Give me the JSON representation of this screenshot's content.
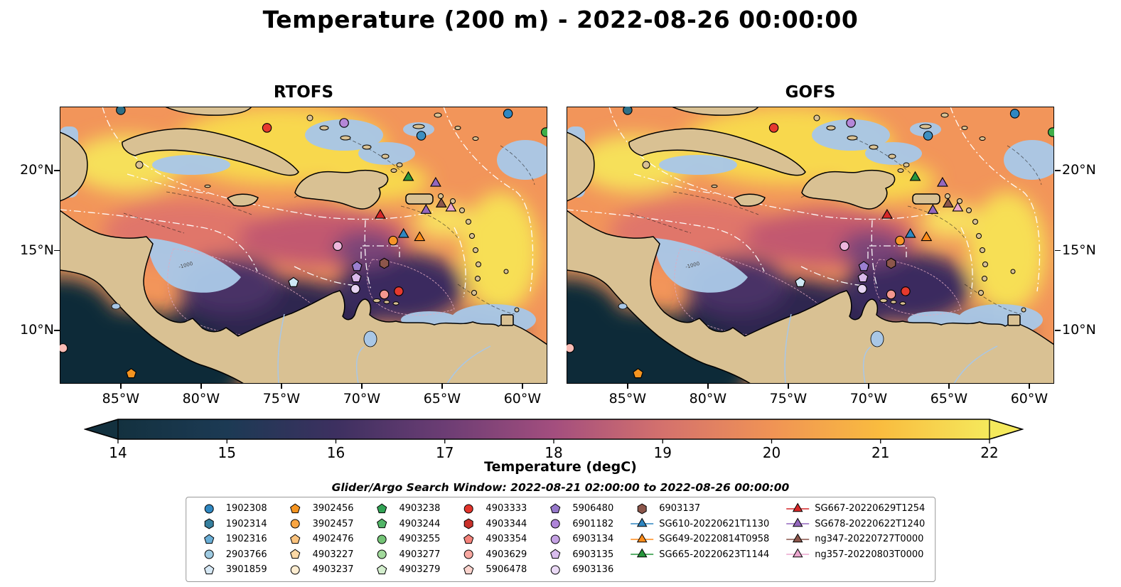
{
  "title": "Temperature (200 m) - 2022-08-26 00:00:00",
  "panels": [
    {
      "title": "RTOFS"
    },
    {
      "title": "GOFS"
    }
  ],
  "search_window": "Glider/Argo Search Window: 2022-08-21 02:00:00 to 2022-08-26 00:00:00",
  "chart_data": {
    "type": "heatmap",
    "description": "Two geographic ocean-model temperature fields at 200 m depth over the Caribbean Sea, with Argo float and glider positions overlaid",
    "panels": [
      "RTOFS",
      "GOFS"
    ],
    "extent": {
      "lon": [
        -88.8,
        -58.45
      ],
      "lat": [
        6.67,
        24.0
      ]
    },
    "lon_ticks": [
      -85,
      -80,
      -75,
      -70,
      -65,
      -60
    ],
    "lat_ticks": [
      20,
      15,
      10
    ],
    "colorbar": {
      "label": "Temperature (degC)",
      "ticks": [
        14,
        15,
        16,
        17,
        18,
        19,
        20,
        21,
        22
      ],
      "range": [
        14,
        22
      ],
      "extended_arrows": true,
      "colors": [
        "#13313f",
        "#1c3a54",
        "#3d3060",
        "#6c3d74",
        "#a34e7e",
        "#d4716d",
        "#f09355",
        "#f9bc3f",
        "#f5e95c"
      ]
    },
    "markers": [
      {
        "lon": -60.9,
        "lat": 23.56,
        "shape": "circle",
        "color": "#2f87c1"
      },
      {
        "lon": -85.0,
        "lat": 23.78,
        "shape": "circle",
        "color": "#2e6f86"
      },
      {
        "lon": -75.9,
        "lat": 22.67,
        "shape": "circle",
        "color": "#e63a2e"
      },
      {
        "lon": -71.1,
        "lat": 22.98,
        "shape": "circle",
        "color": "#b487d8"
      },
      {
        "lon": -66.3,
        "lat": 22.18,
        "shape": "circle",
        "color": "#3d8fc0"
      },
      {
        "lon": -58.55,
        "lat": 22.4,
        "shape": "circle",
        "color": "#3fae49"
      },
      {
        "lon": -67.1,
        "lat": 19.56,
        "shape": "triangle",
        "color": "#27963c"
      },
      {
        "lon": -65.4,
        "lat": 19.2,
        "shape": "triangle",
        "color": "#9467bd"
      },
      {
        "lon": -65.05,
        "lat": 17.9,
        "shape": "triangle",
        "color": "#8c564b"
      },
      {
        "lon": -64.45,
        "lat": 17.65,
        "shape": "triangle",
        "color": "#eba6ce"
      },
      {
        "lon": -66.0,
        "lat": 17.5,
        "shape": "triangle",
        "color": "#9467bd"
      },
      {
        "lon": -68.85,
        "lat": 17.2,
        "shape": "triangle",
        "color": "#d62728"
      },
      {
        "lon": -67.4,
        "lat": 16.0,
        "shape": "triangle",
        "color": "#2e86c1"
      },
      {
        "lon": -66.4,
        "lat": 15.8,
        "shape": "triangle",
        "color": "#ff8c1a"
      },
      {
        "lon": -68.05,
        "lat": 15.62,
        "shape": "circle",
        "color": "#f79428"
      },
      {
        "lon": -71.5,
        "lat": 15.28,
        "shape": "circle",
        "color": "#eeb8dd"
      },
      {
        "lon": -68.6,
        "lat": 14.2,
        "shape": "hexagon",
        "color": "#8c564b"
      },
      {
        "lon": -70.3,
        "lat": 14.0,
        "shape": "pentagon",
        "color": "#9b7fd0"
      },
      {
        "lon": -70.35,
        "lat": 13.3,
        "shape": "pentagon",
        "color": "#d9b8ea"
      },
      {
        "lon": -74.25,
        "lat": 13.0,
        "shape": "pentagon",
        "color": "#cfe8f5"
      },
      {
        "lon": -70.4,
        "lat": 12.6,
        "shape": "circle",
        "color": "#e6d4f2"
      },
      {
        "lon": -68.6,
        "lat": 12.25,
        "shape": "circle",
        "color": "#f4978f"
      },
      {
        "lon": -67.7,
        "lat": 12.45,
        "shape": "circle",
        "color": "#e63a2e"
      },
      {
        "lon": -88.6,
        "lat": 8.9,
        "shape": "circle",
        "color": "#f9bcb6"
      },
      {
        "lon": -84.35,
        "lat": 7.3,
        "shape": "pentagon",
        "color": "#f59420"
      }
    ]
  },
  "legend": {
    "columns": [
      [
        {
          "label": "1902308",
          "shape": "circle",
          "color": "#2f87c1"
        },
        {
          "label": "1902314",
          "shape": "hexagon",
          "color": "#367f9e"
        },
        {
          "label": "1902316",
          "shape": "pentagon",
          "color": "#6aaed6"
        },
        {
          "label": "2903766",
          "shape": "circle",
          "color": "#9ecae1"
        },
        {
          "label": "3901859",
          "shape": "pentagon",
          "color": "#d6e8f5"
        }
      ],
      [
        {
          "label": "3902456",
          "shape": "pentagon",
          "color": "#f59420"
        },
        {
          "label": "3902457",
          "shape": "circle",
          "color": "#f9a542"
        },
        {
          "label": "4902476",
          "shape": "pentagon",
          "color": "#fbc37e"
        },
        {
          "label": "4903227",
          "shape": "pentagon",
          "color": "#fdd9a6"
        },
        {
          "label": "4903237",
          "shape": "circle",
          "color": "#fdecd0"
        }
      ],
      [
        {
          "label": "4903238",
          "shape": "pentagon",
          "color": "#31a354"
        },
        {
          "label": "4903244",
          "shape": "pentagon",
          "color": "#52b567"
        },
        {
          "label": "4903255",
          "shape": "circle",
          "color": "#74c476"
        },
        {
          "label": "4903277",
          "shape": "circle",
          "color": "#a1d99b"
        },
        {
          "label": "4903279",
          "shape": "pentagon",
          "color": "#d3eecd"
        }
      ],
      [
        {
          "label": "4903333",
          "shape": "circle",
          "color": "#e2342b"
        },
        {
          "label": "4903344",
          "shape": "hexagon",
          "color": "#c9302a"
        },
        {
          "label": "4903354",
          "shape": "pentagon",
          "color": "#f4827a"
        },
        {
          "label": "4903629",
          "shape": "circle",
          "color": "#f8a8a1"
        },
        {
          "label": "5906478",
          "shape": "pentagon",
          "color": "#fbd3cd"
        }
      ],
      [
        {
          "label": "5906480",
          "shape": "pentagon",
          "color": "#9678ca"
        },
        {
          "label": "6901182",
          "shape": "circle",
          "color": "#ae84d8"
        },
        {
          "label": "6903134",
          "shape": "circle",
          "color": "#c5a2e4"
        },
        {
          "label": "6903135",
          "shape": "pentagon",
          "color": "#d9bdee"
        },
        {
          "label": "6903136",
          "shape": "circle",
          "color": "#ead9f5"
        }
      ],
      [
        {
          "label": "6903137",
          "shape": "hexagon",
          "color": "#8c564b"
        },
        {
          "label": "SG610-20220621T1130",
          "shape": "triangle",
          "color": "#2e86c1",
          "line": true
        },
        {
          "label": "SG649-20220814T0958",
          "shape": "triangle",
          "color": "#ff8c1a",
          "line": true
        },
        {
          "label": "SG665-20220623T1144",
          "shape": "triangle",
          "color": "#27963c",
          "line": true
        }
      ],
      [
        {
          "label": "SG667-20220629T1254",
          "shape": "triangle",
          "color": "#d62728",
          "line": true
        },
        {
          "label": "SG678-20220622T1240",
          "shape": "triangle",
          "color": "#9467bd",
          "line": true
        },
        {
          "label": "ng347-20220727T0000",
          "shape": "triangle",
          "color": "#8c564b",
          "line": true
        },
        {
          "label": "ng357-20220803T0000",
          "shape": "triangle",
          "color": "#eba6ce",
          "line": true
        }
      ]
    ]
  }
}
